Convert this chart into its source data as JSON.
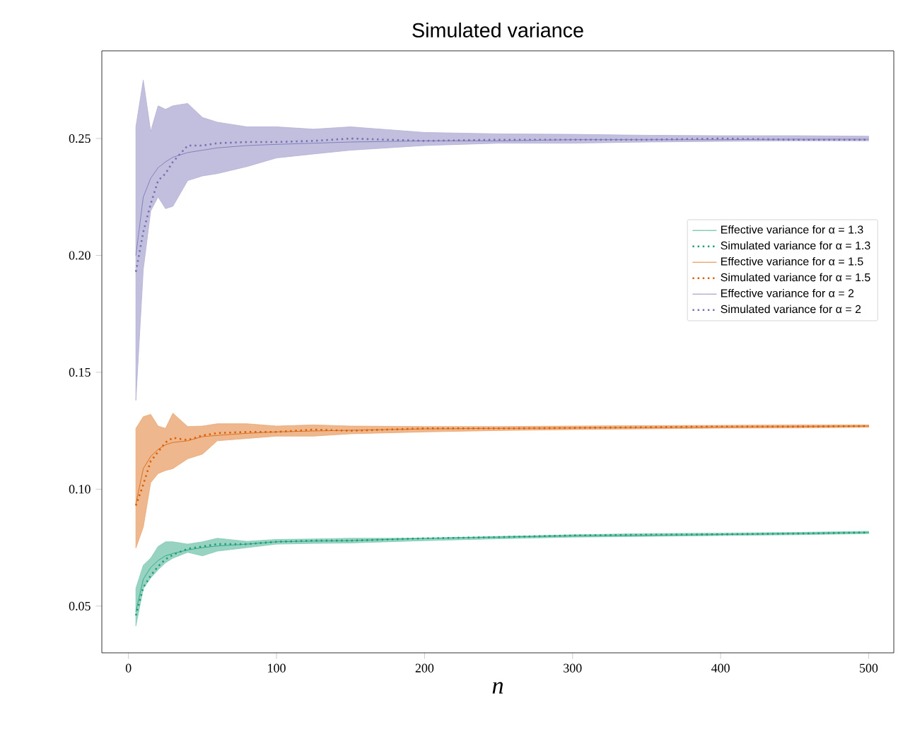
{
  "chart_data": {
    "type": "line",
    "title": "Simulated variance",
    "xlabel": "n",
    "x": [
      5,
      10,
      15,
      20,
      25,
      30,
      40,
      50,
      60,
      80,
      100,
      125,
      150,
      200,
      250,
      300,
      350,
      400,
      450,
      500
    ],
    "xlim": [
      -18,
      517
    ],
    "ylim": [
      0.03,
      0.2875
    ],
    "xticks": [
      0,
      100,
      200,
      300,
      400,
      500
    ],
    "yticks": [
      0.05,
      {
        "value": 0.1,
        "label": "0.10"
      },
      0.15,
      {
        "value": 0.2,
        "label": "0.20"
      },
      0.25
    ],
    "grid": false,
    "legend": "right",
    "marker": "none",
    "series": [
      {
        "name": "Effective variance for α = 1.3",
        "color": "#1b9e77",
        "line_style": "solid",
        "values": [
          0.0476,
          0.0615,
          0.0665,
          0.0695,
          0.0715,
          0.0725,
          0.074,
          0.075,
          0.0757,
          0.0765,
          0.0775,
          0.0778,
          0.078,
          0.079,
          0.0795,
          0.08,
          0.0803,
          0.0806,
          0.081,
          0.0815
        ]
      },
      {
        "name": "Simulated variance for α = 1.3",
        "color": "#1b9e77",
        "line_style": "dotted",
        "values": [
          0.046,
          0.058,
          0.063,
          0.067,
          0.07,
          0.072,
          0.0745,
          0.0755,
          0.0765,
          0.0765,
          0.0775,
          0.078,
          0.078,
          0.079,
          0.0795,
          0.0802,
          0.0805,
          0.0807,
          0.081,
          0.0815
        ],
        "lower": [
          0.0415,
          0.0575,
          0.062,
          0.0655,
          0.0685,
          0.0705,
          0.073,
          0.0715,
          0.0735,
          0.075,
          0.0765,
          0.0768,
          0.077,
          0.078,
          0.0788,
          0.0795,
          0.0798,
          0.0802,
          0.0805,
          0.081
        ],
        "upper": [
          0.0576,
          0.0675,
          0.0705,
          0.0755,
          0.0775,
          0.0775,
          0.0765,
          0.0775,
          0.079,
          0.0777,
          0.0785,
          0.0787,
          0.079,
          0.079,
          0.0798,
          0.0805,
          0.081,
          0.0812,
          0.0815,
          0.082
        ]
      },
      {
        "name": "Effective variance for α = 1.5",
        "color": "#d95f02",
        "line_style": "solid",
        "values": [
          0.0937,
          0.1088,
          0.114,
          0.117,
          0.119,
          0.12,
          0.1207,
          0.1225,
          0.123,
          0.1239,
          0.1245,
          0.1249,
          0.1252,
          0.1258,
          0.126,
          0.1262,
          0.1264,
          0.1266,
          0.1268,
          0.127
        ]
      },
      {
        "name": "Simulated variance for α = 1.5",
        "color": "#d95f02",
        "line_style": "dotted",
        "values": [
          0.093,
          0.102,
          0.112,
          0.116,
          0.12,
          0.122,
          0.121,
          0.123,
          0.124,
          0.1245,
          0.1245,
          0.1255,
          0.125,
          0.126,
          0.126,
          0.1262,
          0.1265,
          0.1268,
          0.1268,
          0.127
        ],
        "lower": [
          0.0748,
          0.0838,
          0.1028,
          0.1067,
          0.108,
          0.1088,
          0.113,
          0.115,
          0.1207,
          0.1217,
          0.1227,
          0.1227,
          0.1237,
          0.1245,
          0.1251,
          0.1255,
          0.1258,
          0.1261,
          0.1262,
          0.1265
        ],
        "upper": [
          0.126,
          0.131,
          0.132,
          0.127,
          0.126,
          0.1325,
          0.1268,
          0.127,
          0.128,
          0.128,
          0.127,
          0.1275,
          0.127,
          0.1268,
          0.1268,
          0.127,
          0.1272,
          0.1273,
          0.1275,
          0.1275
        ]
      },
      {
        "name": "Effective variance for α = 2",
        "color": "#7570b3",
        "line_style": "solid",
        "values": [
          0.2,
          0.225,
          0.233,
          0.2375,
          0.24,
          0.242,
          0.244,
          0.245,
          0.246,
          0.247,
          0.2475,
          0.248,
          0.2485,
          0.249,
          0.249,
          0.2495,
          0.2495,
          0.2495,
          0.2497,
          0.2497
        ]
      },
      {
        "name": "Simulated variance for α = 2",
        "color": "#7570b3",
        "line_style": "dotted",
        "values": [
          0.193,
          0.21,
          0.222,
          0.232,
          0.235,
          0.24,
          0.247,
          0.247,
          0.248,
          0.2485,
          0.2485,
          0.249,
          0.25,
          0.249,
          0.2495,
          0.2495,
          0.2495,
          0.25,
          0.2495,
          0.2495
        ],
        "lower": [
          0.138,
          0.194,
          0.219,
          0.225,
          0.22,
          0.221,
          0.232,
          0.234,
          0.235,
          0.238,
          0.2417,
          0.2434,
          0.245,
          0.247,
          0.248,
          0.248,
          0.2485,
          0.2488,
          0.249,
          0.249
        ],
        "upper": [
          0.255,
          0.275,
          0.253,
          0.264,
          0.2625,
          0.264,
          0.265,
          0.259,
          0.257,
          0.255,
          0.255,
          0.254,
          0.255,
          0.2526,
          0.252,
          0.2518,
          0.2514,
          0.2512,
          0.2512,
          0.251
        ]
      }
    ]
  }
}
